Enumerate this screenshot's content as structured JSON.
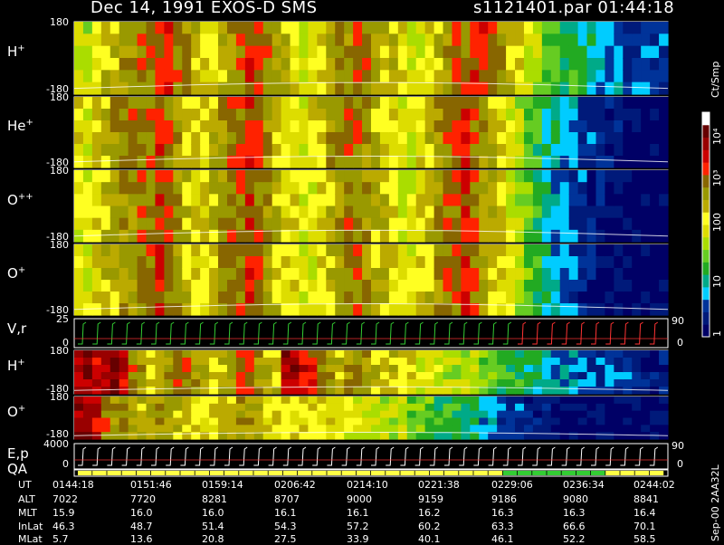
{
  "header": {
    "left": "Dec 14, 1991    EXOS-D SMS",
    "right": "s1121401.par  01:44:18"
  },
  "colors": {
    "colorbar": [
      "#000066",
      "#001a7a",
      "#003399",
      "#00ccff",
      "#00aa88",
      "#22aa22",
      "#66cc22",
      "#aadd00",
      "#dddd00",
      "#ffff22",
      "#bbaa00",
      "#999900",
      "#886600",
      "#ff2200",
      "#cc0000",
      "#990000",
      "#660000",
      "#ffffff"
    ],
    "panel_bg": "#000000",
    "trace_primary": "#ffffff",
    "trace_secondary": "#ff3333",
    "trace_tertiary": "#33cc33"
  },
  "chart_data": [
    {
      "type": "heatmap",
      "panel": "H+",
      "label": "H",
      "sup": "+",
      "ylim": [
        -180,
        180
      ],
      "yticks": [
        "180",
        "-180"
      ],
      "profile": [
        8,
        7,
        9,
        10,
        10,
        11,
        11,
        12,
        12,
        13,
        13,
        12,
        11,
        10,
        9,
        9,
        10,
        11,
        12,
        13,
        13,
        12,
        11,
        10,
        9,
        8,
        8,
        9,
        10,
        11,
        11,
        12,
        12,
        11,
        10,
        10,
        9,
        8,
        8,
        9,
        10,
        11,
        12,
        12,
        13,
        13,
        12,
        11,
        10,
        9,
        8,
        7,
        6,
        6,
        5,
        5,
        4,
        4,
        3,
        3,
        3,
        2,
        2,
        2,
        2,
        2
      ]
    },
    {
      "type": "heatmap",
      "panel": "He+",
      "label": "He",
      "sup": "+",
      "ylim": [
        -180,
        180
      ],
      "yticks": [
        "180",
        "-180"
      ],
      "profile": [
        9,
        8,
        10,
        10,
        11,
        11,
        12,
        12,
        12,
        13,
        12,
        11,
        10,
        10,
        9,
        10,
        11,
        12,
        12,
        13,
        12,
        11,
        10,
        9,
        9,
        8,
        9,
        10,
        11,
        11,
        12,
        12,
        11,
        10,
        9,
        9,
        8,
        8,
        9,
        10,
        11,
        12,
        12,
        13,
        12,
        11,
        10,
        9,
        8,
        7,
        6,
        5,
        4,
        4,
        3,
        3,
        2,
        2,
        1,
        1,
        1,
        0,
        0,
        0,
        0,
        0
      ]
    },
    {
      "type": "heatmap",
      "panel": "O++",
      "label": "O",
      "sup": "++",
      "ylim": [
        -180,
        180
      ],
      "yticks": [
        "180",
        "-180"
      ],
      "profile": [
        8,
        8,
        9,
        10,
        10,
        11,
        11,
        12,
        12,
        13,
        12,
        11,
        10,
        9,
        9,
        10,
        11,
        12,
        12,
        13,
        12,
        11,
        10,
        9,
        9,
        8,
        8,
        9,
        10,
        11,
        12,
        12,
        11,
        10,
        10,
        9,
        8,
        8,
        9,
        10,
        11,
        12,
        12,
        13,
        12,
        11,
        10,
        9,
        8,
        7,
        6,
        5,
        4,
        3,
        3,
        2,
        2,
        1,
        1,
        0,
        0,
        0,
        0,
        0,
        0,
        0
      ]
    },
    {
      "type": "heatmap",
      "panel": "O+",
      "label": "O",
      "sup": "+",
      "ylim": [
        -180,
        180
      ],
      "yticks": [
        "180",
        "-180"
      ],
      "profile": [
        8,
        8,
        9,
        10,
        10,
        11,
        11,
        12,
        12,
        13,
        12,
        11,
        10,
        9,
        9,
        10,
        11,
        12,
        12,
        13,
        12,
        11,
        10,
        9,
        9,
        8,
        8,
        9,
        10,
        11,
        12,
        12,
        11,
        10,
        10,
        9,
        8,
        8,
        9,
        10,
        11,
        12,
        12,
        13,
        12,
        11,
        10,
        9,
        8,
        7,
        6,
        5,
        4,
        3,
        2,
        2,
        1,
        1,
        1,
        0,
        0,
        0,
        0,
        0,
        0,
        0
      ]
    },
    {
      "type": "line",
      "panel": "V,r",
      "label": "V,r",
      "ylim": [
        0,
        25
      ],
      "yticks": [
        "25",
        "0"
      ],
      "right_ticks": [
        "90",
        "0"
      ]
    },
    {
      "type": "heatmap",
      "panel": "H+ (2)",
      "label": "H",
      "sup": "+",
      "ylim": [
        -180,
        180
      ],
      "yticks": [
        "180",
        "-180"
      ],
      "profile": [
        15,
        15,
        14,
        15,
        15,
        14,
        12,
        11,
        10,
        10,
        11,
        12,
        12,
        11,
        11,
        10,
        10,
        11,
        12,
        12,
        11,
        10,
        10,
        15,
        15,
        14,
        13,
        12,
        11,
        10,
        11,
        12,
        11,
        10,
        10,
        10,
        9,
        9,
        8,
        8,
        8,
        7,
        7,
        7,
        7,
        6,
        6,
        5,
        5,
        5,
        4,
        4,
        4,
        3,
        3,
        3,
        2,
        2,
        2,
        2,
        2,
        2,
        1,
        1,
        1,
        1
      ]
    },
    {
      "type": "heatmap",
      "panel": "O+ (2)",
      "label": "O",
      "sup": "+",
      "ylim": [
        -180,
        180
      ],
      "yticks": [
        "180",
        "-180"
      ],
      "profile": [
        15,
        15,
        14,
        12,
        11,
        11,
        10,
        10,
        10,
        11,
        11,
        10,
        10,
        9,
        9,
        9,
        10,
        10,
        11,
        11,
        10,
        9,
        9,
        9,
        9,
        9,
        9,
        9,
        9,
        8,
        8,
        8,
        8,
        7,
        7,
        7,
        7,
        6,
        6,
        6,
        5,
        5,
        5,
        4,
        4,
        3,
        3,
        2,
        2,
        2,
        1,
        1,
        1,
        0,
        0,
        0,
        0,
        0,
        0,
        0,
        0,
        0,
        0,
        0,
        0,
        0
      ]
    },
    {
      "type": "line",
      "panel": "E,p",
      "label": "E,p",
      "ylim": [
        0,
        4000
      ],
      "yticks": [
        "4000",
        "0"
      ],
      "right_ticks": [
        "90",
        "0"
      ]
    },
    {
      "type": "line",
      "panel": "QA",
      "label": "QA"
    }
  ],
  "colorbar": {
    "unit_label": "Ct/Smp",
    "ticks": [
      "10⁴",
      "10³",
      "100",
      "10",
      "1"
    ]
  },
  "ephemeris": {
    "row_labels": [
      "UT",
      "ALT",
      "MLT",
      "InLat",
      "MLat"
    ],
    "columns": [
      [
        "0144:18",
        "7022",
        "15.9",
        "46.3",
        "5.7"
      ],
      [
        "0151:46",
        "7720",
        "16.0",
        "48.7",
        "13.6"
      ],
      [
        "0159:14",
        "8281",
        "16.0",
        "51.4",
        "20.8"
      ],
      [
        "0206:42",
        "8707",
        "16.1",
        "54.3",
        "27.5"
      ],
      [
        "0214:10",
        "9000",
        "16.1",
        "57.2",
        "33.9"
      ],
      [
        "0221:38",
        "9159",
        "16.2",
        "60.2",
        "40.1"
      ],
      [
        "0229:06",
        "9186",
        "16.3",
        "63.3",
        "46.1"
      ],
      [
        "0236:34",
        "9080",
        "16.3",
        "66.6",
        "52.2"
      ],
      [
        "0244:02",
        "8841",
        "16.4",
        "70.1",
        "58.5"
      ]
    ]
  },
  "footer_stamp": "Sep-00  2AA32L"
}
